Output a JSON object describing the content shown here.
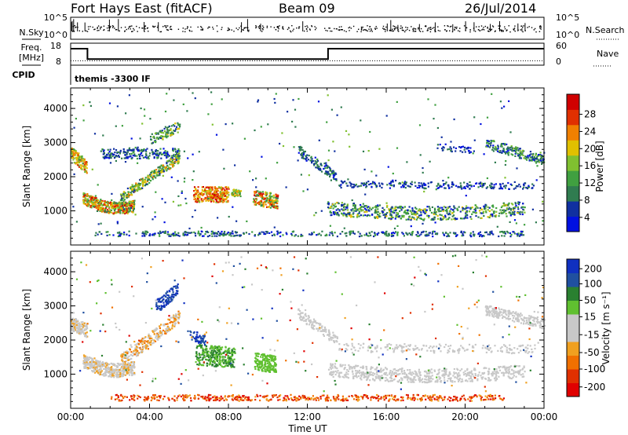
{
  "header": {
    "title": "Fort Hays East (fitACF)",
    "beam": "Beam 09",
    "date": "26/Jul/2014"
  },
  "left_labels": {
    "nsky": "N.Sky",
    "freq": "Freq.",
    "mhz": "[MHz]",
    "cpid": "CPID"
  },
  "right_labels": {
    "nsearch": "N.Search",
    "nave": "Nave"
  },
  "cpid_text": "themis -3300 IF",
  "colors": {
    "power": [
      "#0010e0",
      "#1030a0",
      "#307c50",
      "#40a040",
      "#80c030",
      "#e0c000",
      "#f08000",
      "#e03000",
      "#d00000"
    ],
    "velocity": [
      "#1030c0",
      "#2050a0",
      "#2a8030",
      "#60c030",
      "#c8c8c8",
      "#c8c8c8",
      "#f0a020",
      "#f07000",
      "#e03000",
      "#e00000"
    ]
  },
  "chart_data": [
    {
      "type": "line",
      "title": "N.Sky / N.Search",
      "y_ticks_left": [
        "10^5",
        "10^0"
      ],
      "y_ticks_right": [
        "10^5",
        "10^0"
      ],
      "x": [
        "00:00",
        "04:00",
        "08:00",
        "12:00",
        "16:00",
        "20:00",
        "00:00"
      ]
    },
    {
      "type": "line",
      "title": "Freq / Nave",
      "y_ticks_left": [
        "18",
        "8"
      ],
      "y_ticks_right": [
        "60",
        "0"
      ],
      "series": [
        {
          "name": "Freq.",
          "x": [
            0,
            0.85,
            0.85,
            13.05,
            13.05,
            24
          ],
          "y": [
            15.5,
            15.5,
            10.8,
            10.8,
            15.5,
            15.5
          ]
        },
        {
          "name": "Nave",
          "x": [
            0,
            24
          ],
          "y": [
            10,
            10
          ]
        }
      ]
    },
    {
      "type": "heatmap",
      "ylabel": "Slant Range [km]",
      "y_ticks": [
        "4000",
        "3000",
        "2000",
        "1000"
      ],
      "x_ticks": [
        "00:00",
        "04:00",
        "08:00",
        "12:00",
        "16:00",
        "20:00",
        "00:00"
      ],
      "colorbar": {
        "label": "Power [dB]",
        "ticks": [
          "28",
          "24",
          "20",
          "16",
          "12",
          "8",
          "4"
        ]
      }
    },
    {
      "type": "heatmap",
      "ylabel": "Slant Range [km]",
      "xlabel": "Time UT",
      "y_ticks": [
        "4000",
        "3000",
        "2000",
        "1000"
      ],
      "x_ticks": [
        "00:00",
        "04:00",
        "08:00",
        "12:00",
        "16:00",
        "20:00",
        "00:00"
      ],
      "colorbar": {
        "label": "Velocity [m s⁻¹]",
        "ticks": [
          "200",
          "100",
          "50",
          "15",
          "-15",
          "-50",
          "-100",
          "-200"
        ]
      }
    }
  ]
}
